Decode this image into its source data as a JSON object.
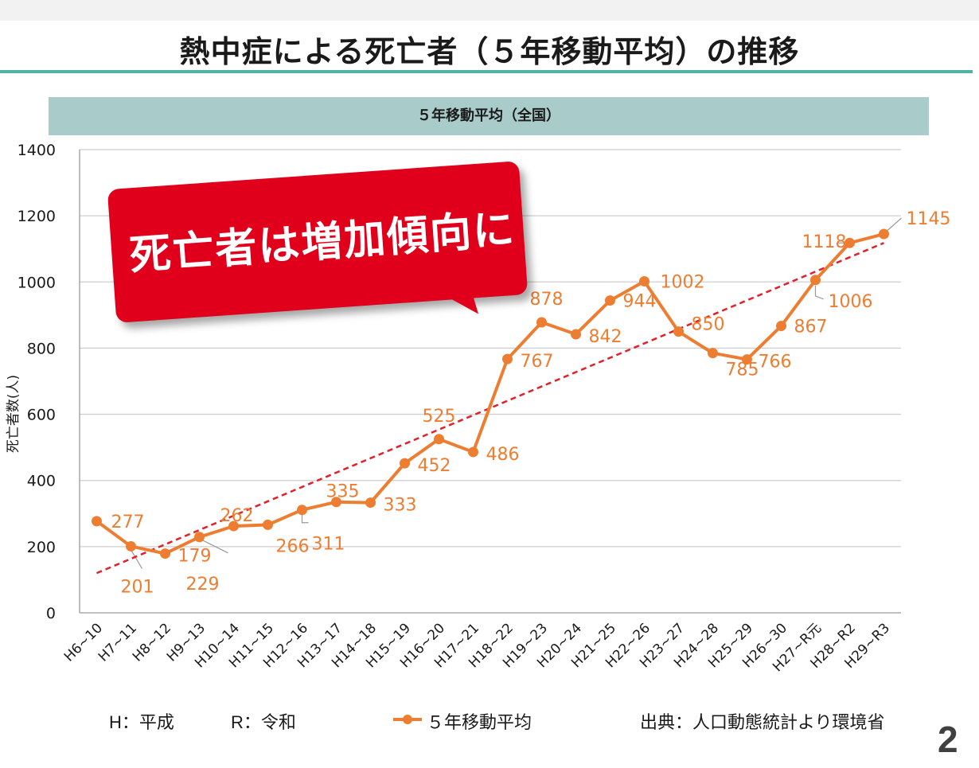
{
  "page": {
    "title": "熱中症による死亡者（５年移動平均）の推移",
    "page_number": "2"
  },
  "callout": {
    "text": "死亡者は増加傾向に"
  },
  "footer": {
    "era_heisei": "H：平成",
    "era_reiwa": "R：令和",
    "legend_label": "５年移動平均",
    "source": "出典：人口動態統計より環境省"
  },
  "colors": {
    "series": "#ed7d31",
    "trend": "#e2202a",
    "header": "#a9cccb",
    "rule": "#4fb3a9",
    "callout": "#e0001b"
  },
  "chart_data": {
    "type": "line",
    "title": "５年移動平均（全国）",
    "xlabel": "",
    "ylabel": "死亡者数(人)",
    "ylim": [
      0,
      1400
    ],
    "yticks": [
      "0",
      "200",
      "400",
      "600",
      "800",
      "1000",
      "1200",
      "1400"
    ],
    "categories": [
      "H6~10",
      "H7~11",
      "H8~12",
      "H9~13",
      "H10~14",
      "H11~15",
      "H12~16",
      "H13~17",
      "H14~18",
      "H15~19",
      "H16~20",
      "H17~21",
      "H18~22",
      "H19~23",
      "H20~24",
      "H21~25",
      "H22~26",
      "H23~27",
      "H24~28",
      "H25~29",
      "H26~30",
      "H27~R元",
      "H28~R2",
      "H29~R3"
    ],
    "series": [
      {
        "name": "５年移動平均",
        "values": [
          277,
          201,
          179,
          229,
          262,
          266,
          311,
          335,
          333,
          452,
          525,
          486,
          767,
          878,
          842,
          944,
          1002,
          850,
          785,
          766,
          867,
          1006,
          1118,
          1145
        ]
      }
    ],
    "trendline": {
      "style": "dashed",
      "start": 120,
      "end": 1118
    }
  }
}
